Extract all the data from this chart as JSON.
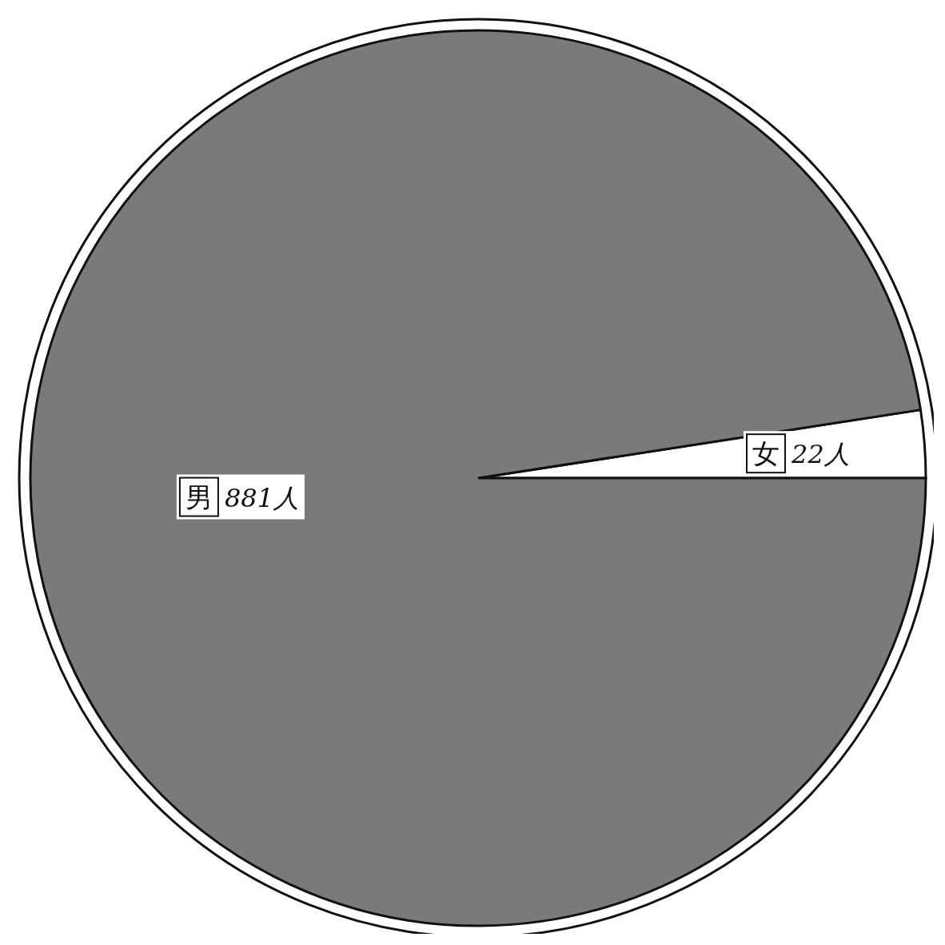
{
  "chart_data": {
    "type": "pie",
    "categories": [
      "女",
      "男"
    ],
    "values": [
      22,
      881
    ],
    "value_labels": [
      "22人",
      "881人"
    ],
    "colors": [
      "#ffffff",
      "#7a7a7a"
    ]
  }
}
